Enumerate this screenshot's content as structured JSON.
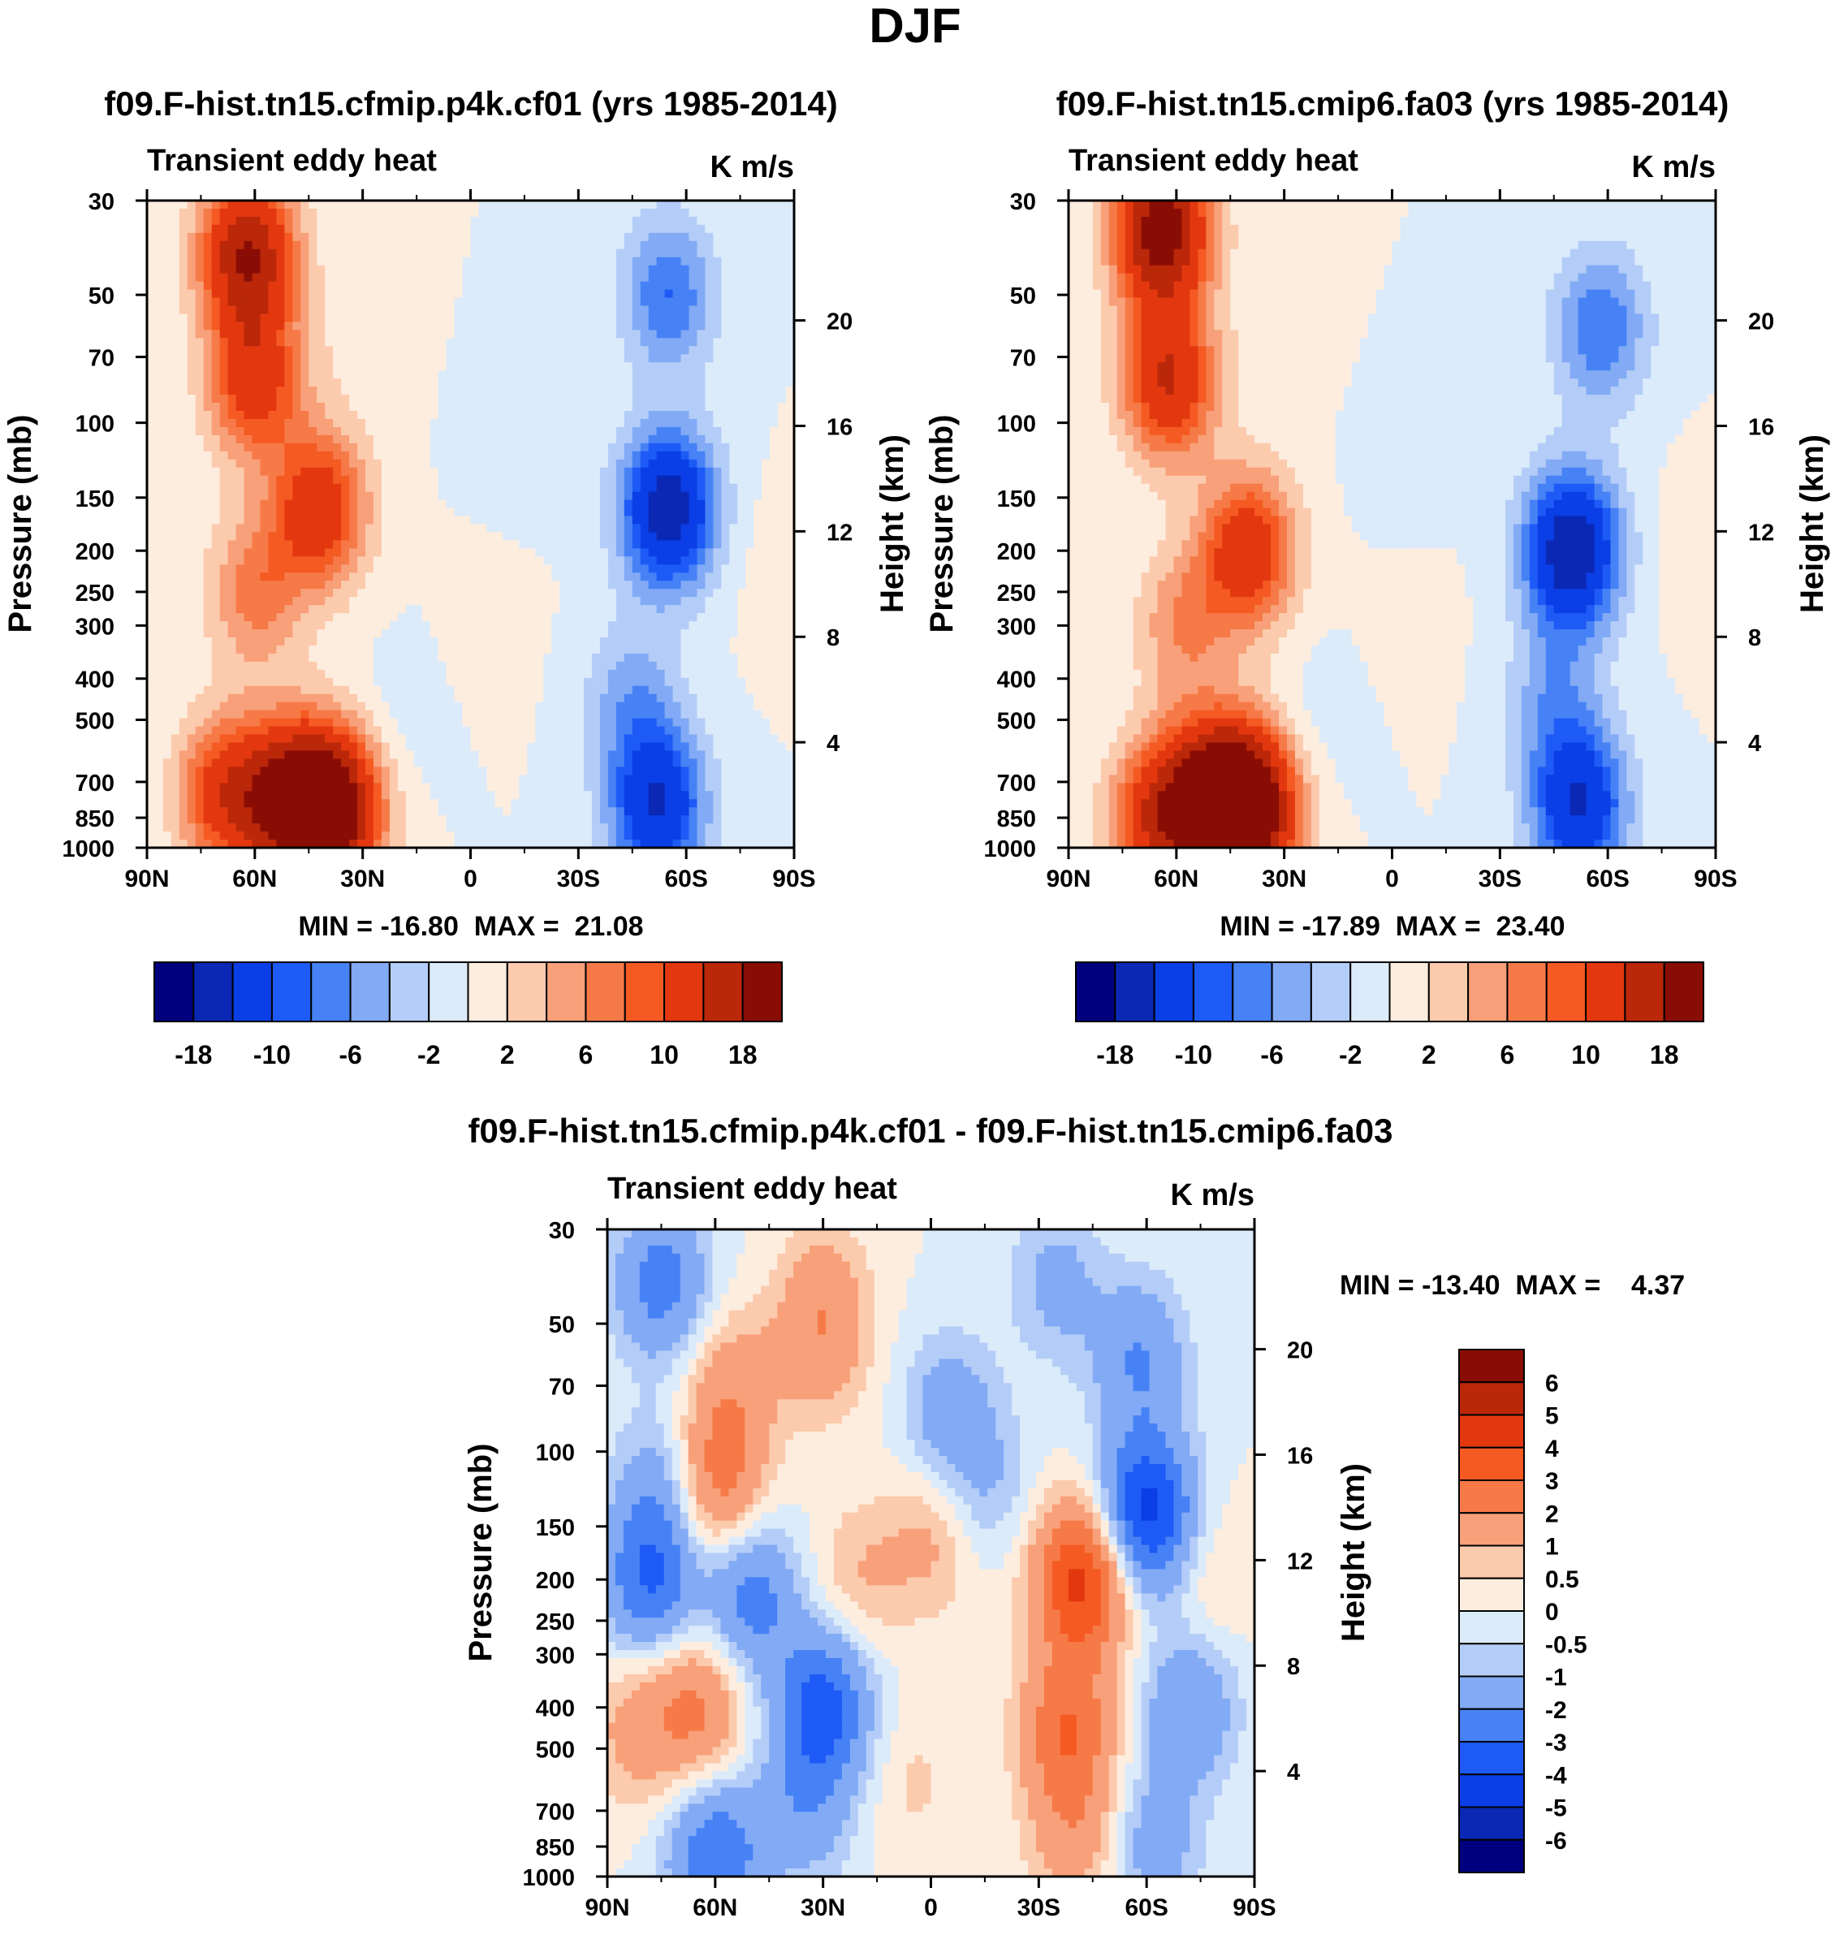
{
  "figure": {
    "title": "DJF"
  },
  "colors": {
    "abs_levels": [
      "#00007f",
      "#0a28b4",
      "#0a3ee6",
      "#1e5af5",
      "#4682f5",
      "#82aaf5",
      "#b4cdf8",
      "#dcebfa",
      "#fdeddf",
      "#fccaad",
      "#f8a07a",
      "#f67a47",
      "#f55a23",
      "#e3380f",
      "#bb2709",
      "#8a0d05"
    ],
    "diff_levels": [
      "#00007f",
      "#0a28b4",
      "#0a3ee6",
      "#1e5af5",
      "#4682f5",
      "#82aaf5",
      "#b4cdf8",
      "#dcebfa",
      "#fdeddf",
      "#fccaad",
      "#f8a07a",
      "#f67a47",
      "#f55a23",
      "#e3380f",
      "#bb2709",
      "#8a0d05"
    ]
  },
  "chart_data": [
    {
      "id": "panel-a",
      "type": "heatmap",
      "title": "f09.F-hist.tn15.cfmip.p4k.cf01 (yrs 1985-2014)",
      "left_label": "Transient eddy heat",
      "units_label": "K m/s",
      "xlabel": "",
      "ylabel": "Pressure (mb)",
      "ylabel_right": "Height (km)",
      "x_ticks": [
        "90N",
        "60N",
        "30N",
        "0",
        "30S",
        "60S",
        "90S"
      ],
      "x_range": [
        90,
        -90
      ],
      "y_ticks": [
        30,
        50,
        70,
        100,
        150,
        200,
        250,
        300,
        400,
        500,
        700,
        850,
        1000
      ],
      "y_range": [
        30,
        1000
      ],
      "y_scale": "log",
      "right_ticks": [
        4,
        8,
        12,
        16,
        20
      ],
      "min": -16.8,
      "max": 21.08,
      "stats_text": "MIN = -16.80  MAX =  21.08",
      "colorbar": {
        "orientation": "horizontal",
        "labels": [
          "-18",
          "-10",
          "-6",
          "-2",
          "2",
          "6",
          "10",
          "18"
        ]
      },
      "features": [
        {
          "lat": 62,
          "p": 40,
          "value": 18
        },
        {
          "lat": 60,
          "p": 80,
          "value": 12
        },
        {
          "lat": 42,
          "p": 160,
          "value": 13
        },
        {
          "lat": 50,
          "p": 780,
          "value": 18
        },
        {
          "lat": 38,
          "p": 820,
          "value": 21
        },
        {
          "lat": 68,
          "p": 750,
          "value": 12
        },
        {
          "lat": 60,
          "p": 250,
          "value": 7
        },
        {
          "lat": 30,
          "p": 60,
          "value": 1.5
        },
        {
          "lat": -5,
          "p": 300,
          "value": 0.8
        },
        {
          "lat": -85,
          "p": 220,
          "value": 1
        },
        {
          "lat": -55,
          "p": 160,
          "value": -16.8
        },
        {
          "lat": -55,
          "p": 50,
          "value": -8
        },
        {
          "lat": -52,
          "p": 800,
          "value": -14
        },
        {
          "lat": -45,
          "p": 450,
          "value": -5
        },
        {
          "lat": -15,
          "p": 100,
          "value": -2
        },
        {
          "lat": 20,
          "p": 500,
          "value": -1
        }
      ]
    },
    {
      "id": "panel-b",
      "type": "heatmap",
      "title": "f09.F-hist.tn15.cmip6.fa03 (yrs 1985-2014)",
      "left_label": "Transient eddy heat",
      "units_label": "K m/s",
      "xlabel": "",
      "ylabel": "Pressure (mb)",
      "ylabel_right": "Height (km)",
      "x_ticks": [
        "90N",
        "60N",
        "30N",
        "0",
        "30S",
        "60S",
        "90S"
      ],
      "x_range": [
        90,
        -90
      ],
      "y_ticks": [
        30,
        50,
        70,
        100,
        150,
        200,
        250,
        300,
        400,
        500,
        700,
        850,
        1000
      ],
      "y_range": [
        30,
        1000
      ],
      "y_scale": "log",
      "right_ticks": [
        4,
        8,
        12,
        16,
        20
      ],
      "min": -17.89,
      "max": 23.4,
      "stats_text": "MIN = -17.89  MAX =  23.40",
      "colorbar": {
        "orientation": "horizontal",
        "labels": [
          "-18",
          "-10",
          "-6",
          "-2",
          "2",
          "6",
          "10",
          "18"
        ]
      },
      "features": [
        {
          "lat": 64,
          "p": 35,
          "value": 21
        },
        {
          "lat": 62,
          "p": 80,
          "value": 14
        },
        {
          "lat": 40,
          "p": 200,
          "value": 13
        },
        {
          "lat": 50,
          "p": 780,
          "value": 18
        },
        {
          "lat": 40,
          "p": 820,
          "value": 23.4
        },
        {
          "lat": 65,
          "p": 850,
          "value": 13
        },
        {
          "lat": 58,
          "p": 300,
          "value": 6
        },
        {
          "lat": 28,
          "p": 60,
          "value": 1.5
        },
        {
          "lat": -5,
          "p": 300,
          "value": 0.8
        },
        {
          "lat": -85,
          "p": 200,
          "value": 1
        },
        {
          "lat": -50,
          "p": 200,
          "value": -17.9
        },
        {
          "lat": -58,
          "p": 60,
          "value": -8
        },
        {
          "lat": -52,
          "p": 800,
          "value": -14
        },
        {
          "lat": -45,
          "p": 450,
          "value": -5
        },
        {
          "lat": -5,
          "p": 110,
          "value": -2
        },
        {
          "lat": 20,
          "p": 500,
          "value": -1
        }
      ]
    },
    {
      "id": "panel-c",
      "type": "heatmap",
      "title": "f09.F-hist.tn15.cfmip.p4k.cf01 - f09.F-hist.tn15.cmip6.fa03",
      "left_label": "Transient eddy heat",
      "units_label": "K m/s",
      "xlabel": "",
      "ylabel": "Pressure (mb)",
      "ylabel_right": "Height (km)",
      "x_ticks": [
        "90N",
        "60N",
        "30N",
        "0",
        "30S",
        "60S",
        "90S"
      ],
      "x_range": [
        90,
        -90
      ],
      "y_ticks": [
        30,
        50,
        70,
        100,
        150,
        200,
        250,
        300,
        400,
        500,
        700,
        850,
        1000
      ],
      "y_range": [
        30,
        1000
      ],
      "y_scale": "log",
      "right_ticks": [
        4,
        8,
        12,
        16,
        20
      ],
      "min": -13.4,
      "max": 4.37,
      "stats_text": "MIN = -13.40  MAX =    4.37",
      "colorbar": {
        "orientation": "vertical",
        "labels": [
          "6",
          "5",
          "4",
          "3",
          "2",
          "1",
          "0.5",
          "0",
          "-0.5",
          "-1",
          "-2",
          "-3",
          "-4",
          "-5",
          "-6"
        ]
      },
      "features": [
        {
          "lat": 75,
          "p": 40,
          "value": -2.5
        },
        {
          "lat": 75,
          "p": 120,
          "value": -1.5
        },
        {
          "lat": 78,
          "p": 200,
          "value": -3
        },
        {
          "lat": 50,
          "p": 220,
          "value": -2.5
        },
        {
          "lat": 60,
          "p": 120,
          "value": 2.5
        },
        {
          "lat": 55,
          "p": 70,
          "value": 1.5
        },
        {
          "lat": 30,
          "p": 40,
          "value": 0.8
        },
        {
          "lat": 30,
          "p": 55,
          "value": 1.5
        },
        {
          "lat": 65,
          "p": 400,
          "value": 2.2
        },
        {
          "lat": 82,
          "p": 450,
          "value": 1.3
        },
        {
          "lat": 30,
          "p": 400,
          "value": -3.5
        },
        {
          "lat": 35,
          "p": 700,
          "value": -1.5
        },
        {
          "lat": 60,
          "p": 900,
          "value": -3
        },
        {
          "lat": 20,
          "p": 200,
          "value": 1
        },
        {
          "lat": 0,
          "p": 160,
          "value": 1.2
        },
        {
          "lat": 5,
          "p": 600,
          "value": 0.6
        },
        {
          "lat": -42,
          "p": 200,
          "value": 4.37
        },
        {
          "lat": -38,
          "p": 450,
          "value": 2.8
        },
        {
          "lat": -40,
          "p": 800,
          "value": 1.5
        },
        {
          "lat": -60,
          "p": 140,
          "value": -4.5
        },
        {
          "lat": -58,
          "p": 60,
          "value": -2
        },
        {
          "lat": -35,
          "p": 40,
          "value": -1.3
        },
        {
          "lat": -5,
          "p": 80,
          "value": -1.5
        },
        {
          "lat": -15,
          "p": 120,
          "value": -1
        },
        {
          "lat": -72,
          "p": 400,
          "value": -2
        },
        {
          "lat": -62,
          "p": 850,
          "value": -1.5
        },
        {
          "lat": -78,
          "p": 200,
          "value": 0.7
        }
      ]
    }
  ]
}
